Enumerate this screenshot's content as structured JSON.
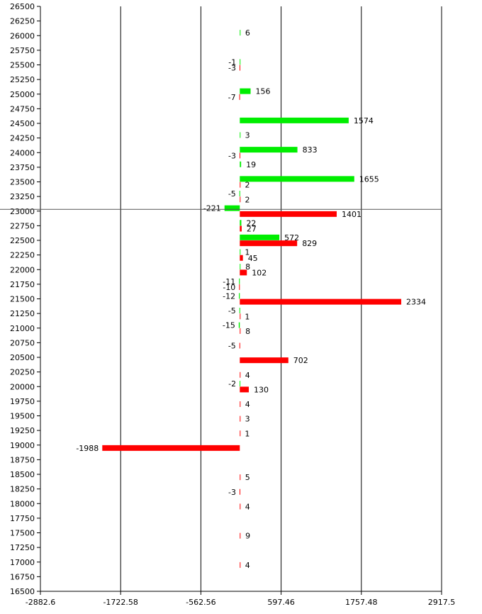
{
  "chart_data": {
    "type": "bar",
    "orientation": "horizontal",
    "grid": true,
    "xlim": [
      -2882.6,
      2917.5
    ],
    "ylim": [
      16500,
      26500
    ],
    "x_ticks": [
      "-2882.6",
      "-1722.58",
      "-562.56",
      "597.46",
      "1757.48",
      "2917.5"
    ],
    "y_ticks": [
      "16500",
      "16750",
      "17000",
      "17250",
      "17500",
      "17750",
      "18000",
      "18250",
      "18500",
      "18750",
      "19000",
      "19250",
      "19500",
      "19750",
      "20000",
      "20250",
      "20500",
      "20750",
      "21000",
      "21250",
      "21500",
      "21750",
      "22000",
      "22250",
      "22500",
      "22750",
      "23000",
      "23250",
      "23500",
      "23750",
      "24000",
      "24250",
      "24500",
      "24750",
      "25000",
      "25250",
      "25500",
      "25750",
      "26000",
      "26250",
      "26500"
    ],
    "reference_line_y": 23030,
    "colors": {
      "green": "#00ee00",
      "red": "#ff0000"
    },
    "series": [
      {
        "color": "green",
        "points": [
          {
            "y": 26050,
            "value": 6
          },
          {
            "y": 25550,
            "value": -1
          },
          {
            "y": 25050,
            "value": 156
          },
          {
            "y": 24550,
            "value": 1574
          },
          {
            "y": 24300,
            "value": 3
          },
          {
            "y": 24050,
            "value": 833
          },
          {
            "y": 23800,
            "value": 19
          },
          {
            "y": 23550,
            "value": 1655
          },
          {
            "y": 23300,
            "value": -5
          },
          {
            "y": 23050,
            "value": -221
          },
          {
            "y": 22800,
            "value": 22
          },
          {
            "y": 22550,
            "value": 572
          },
          {
            "y": 22300,
            "value": 1
          },
          {
            "y": 22050,
            "value": 8
          },
          {
            "y": 21800,
            "value": -11
          },
          {
            "y": 21550,
            "value": -12
          },
          {
            "y": 21300,
            "value": -5
          },
          {
            "y": 21050,
            "value": -15
          },
          {
            "y": 20050,
            "value": -2
          }
        ]
      },
      {
        "color": "red",
        "points": [
          {
            "y": 25450,
            "value": -3
          },
          {
            "y": 24950,
            "value": -7
          },
          {
            "y": 23950,
            "value": -3
          },
          {
            "y": 23450,
            "value": 2
          },
          {
            "y": 23200,
            "value": 2
          },
          {
            "y": 22950,
            "value": 1401
          },
          {
            "y": 22700,
            "value": 27
          },
          {
            "y": 22450,
            "value": 829
          },
          {
            "y": 22200,
            "value": 45
          },
          {
            "y": 21950,
            "value": 102
          },
          {
            "y": 21700,
            "value": -10
          },
          {
            "y": 21450,
            "value": 2334
          },
          {
            "y": 21200,
            "value": 1
          },
          {
            "y": 20950,
            "value": 8
          },
          {
            "y": 20700,
            "value": -5
          },
          {
            "y": 20450,
            "value": 702
          },
          {
            "y": 20200,
            "value": 4
          },
          {
            "y": 19950,
            "value": 130
          },
          {
            "y": 19700,
            "value": 4
          },
          {
            "y": 19450,
            "value": 3
          },
          {
            "y": 19200,
            "value": 1
          },
          {
            "y": 18950,
            "value": -1988
          },
          {
            "y": 18450,
            "value": 5
          },
          {
            "y": 18200,
            "value": -3
          },
          {
            "y": 17950,
            "value": 4
          },
          {
            "y": 17450,
            "value": 9
          },
          {
            "y": 16950,
            "value": 4
          }
        ]
      }
    ]
  }
}
